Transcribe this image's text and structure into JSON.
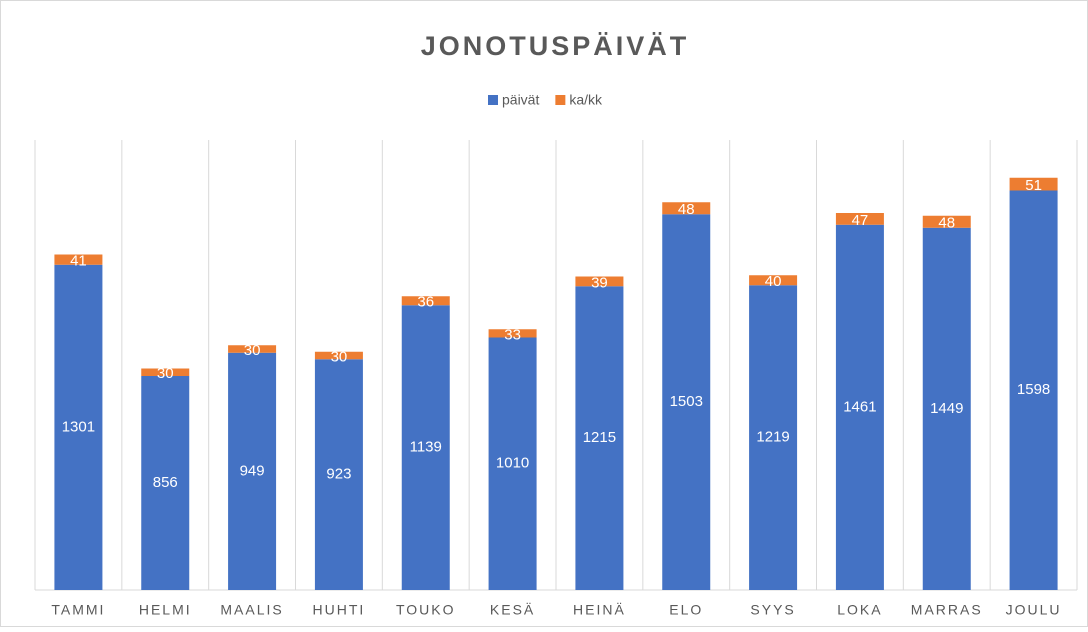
{
  "chart_data": {
    "type": "stacked_bar",
    "title": "JONOTUSPÄIVÄT",
    "categories": [
      "TAMMI",
      "HELMI",
      "MAALIS",
      "HUHTI",
      "TOUKO",
      "KESÄ",
      "HEINÄ",
      "ELO",
      "SYYS",
      "LOKA",
      "MARRAS",
      "JOULU"
    ],
    "series": [
      {
        "name": "päivät",
        "color": "#4472c4",
        "values": [
          1301,
          856,
          949,
          923,
          1139,
          1010,
          1215,
          1503,
          1219,
          1461,
          1449,
          1598
        ]
      },
      {
        "name": "ka/kk",
        "color": "#ed7d31",
        "values": [
          41,
          30,
          30,
          30,
          36,
          33,
          39,
          48,
          40,
          47,
          48,
          51
        ]
      }
    ],
    "legend": "top"
  }
}
